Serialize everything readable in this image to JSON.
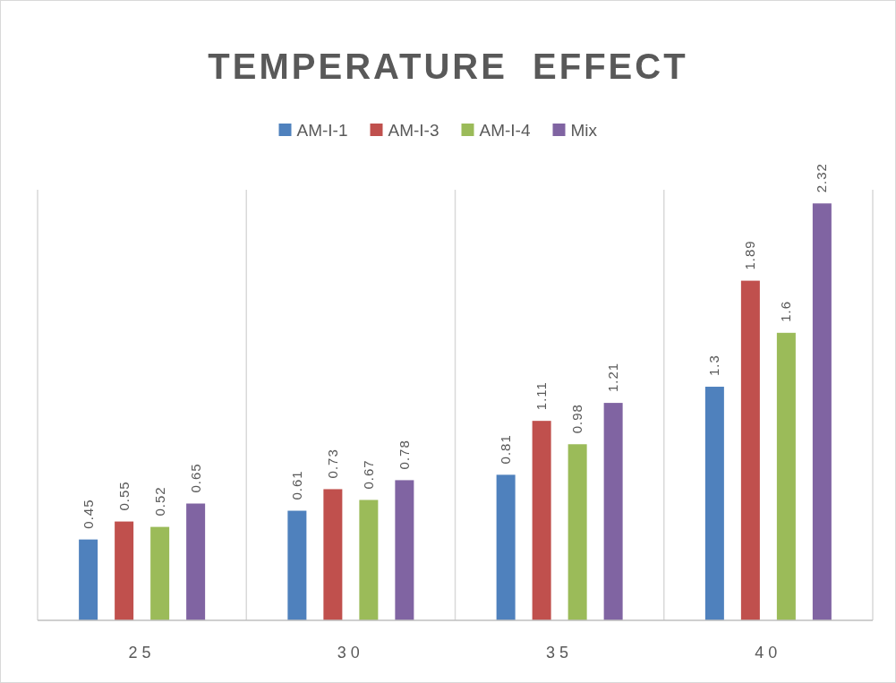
{
  "chart_data": {
    "type": "bar",
    "title": "TEMPERATURE  EFFECT",
    "categories": [
      "25",
      "30",
      "35",
      "40"
    ],
    "series": [
      {
        "name": "AM-I-1",
        "color": "#4f81bd",
        "values": [
          0.45,
          0.61,
          0.81,
          1.3
        ]
      },
      {
        "name": "AM-I-3",
        "color": "#c0504d",
        "values": [
          0.55,
          0.73,
          1.11,
          1.89
        ]
      },
      {
        "name": "AM-I-4",
        "color": "#9bbb59",
        "values": [
          0.52,
          0.67,
          0.98,
          1.6
        ]
      },
      {
        "name": "Mix",
        "color": "#8064a2",
        "values": [
          0.65,
          0.78,
          1.21,
          2.32
        ]
      }
    ],
    "data_labels": true,
    "legend": "top",
    "grid": "x",
    "tick_labels": "x"
  }
}
